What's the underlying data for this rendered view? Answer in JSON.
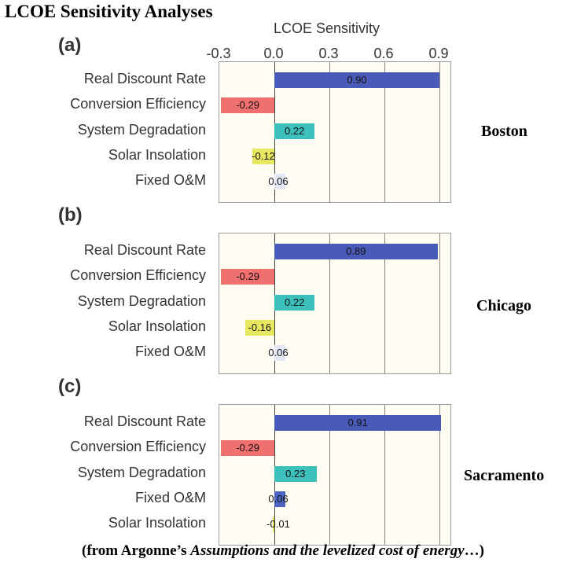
{
  "title": "LCOE Sensitivity Analyses",
  "footer": {
    "prefix": "(from Argonne’s ",
    "italic": "Assumptions and the levelized cost of energy",
    "suffix": "…)"
  },
  "colors": {
    "Real Discount Rate": "#4a5ab8",
    "Conversion Efficiency": "#f07070",
    "System Degradation": "#3cc0bc",
    "Solar Insolation": "#e8e860",
    "Fixed O&M": "#4a62c0"
  },
  "chart_data": {
    "type": "bar",
    "orientation": "horizontal",
    "xlabel": "LCOE Sensitivity",
    "xlim": [
      -0.3,
      0.9
    ],
    "x_ticks": [
      "-0.3",
      "0.0",
      "0.3",
      "0.6",
      "0.9"
    ],
    "panels": [
      {
        "letter": "(a)",
        "city": "Boston",
        "categories": [
          "Real Discount Rate",
          "Conversion Efficiency",
          "System Degradation",
          "Solar Insolation",
          "Fixed O&M"
        ],
        "values": [
          0.9,
          -0.29,
          0.22,
          -0.12,
          0.06
        ],
        "labels": [
          "0.90",
          "-0.29",
          "0.22",
          "-0.12",
          "0.06"
        ]
      },
      {
        "letter": "(b)",
        "city": "Chicago",
        "categories": [
          "Real Discount Rate",
          "Conversion Efficiency",
          "System Degradation",
          "Solar Insolation",
          "Fixed O&M"
        ],
        "values": [
          0.89,
          -0.29,
          0.22,
          -0.16,
          0.06
        ],
        "labels": [
          "0.89",
          "-0.29",
          "0.22",
          "-0.16",
          "0.06"
        ]
      },
      {
        "letter": "(c)",
        "city": "Sacramento",
        "categories": [
          "Real Discount Rate",
          "Conversion Efficiency",
          "System Degradation",
          "Fixed O&M",
          "Solar Insolation"
        ],
        "values": [
          0.91,
          -0.29,
          0.23,
          0.06,
          -0.01
        ],
        "labels": [
          "0.91",
          "-0.29",
          "0.23",
          "0.06",
          "-0.01"
        ]
      }
    ]
  }
}
